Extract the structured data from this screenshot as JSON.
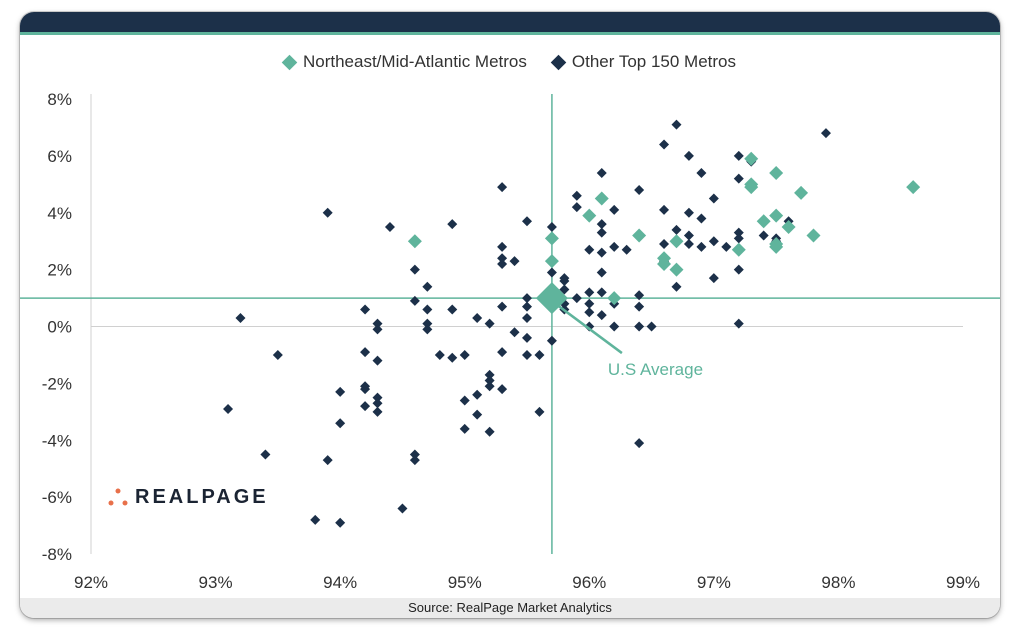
{
  "source": "Source: RealPage Market Analytics",
  "logo": {
    "text": "REALPAGE"
  },
  "colors": {
    "northeast": "#5fb49c",
    "other": "#1c3049",
    "header": "#1c3049",
    "accent": "#5fb49c"
  },
  "chart_data": {
    "type": "scatter",
    "xlim": [
      0.92,
      0.99
    ],
    "ylim": [
      -0.08,
      0.08
    ],
    "x_ticks": [
      "92%",
      "93%",
      "94%",
      "95%",
      "96%",
      "97%",
      "98%",
      "99%"
    ],
    "y_ticks": [
      "8%",
      "6%",
      "4%",
      "2%",
      "0%",
      "-2%",
      "-4%",
      "-6%",
      "-8%"
    ],
    "reference_lines": {
      "x": 0.957,
      "y": 0.01
    },
    "annotation": {
      "text": "U.S Average",
      "x": 0.957,
      "y": 0.01
    },
    "series": [
      {
        "name": "Northeast/Mid-Atlantic Metros",
        "color": "#5fb49c",
        "points": [
          [
            0.946,
            0.03
          ],
          [
            0.957,
            0.031
          ],
          [
            0.957,
            0.023
          ],
          [
            0.96,
            0.039
          ],
          [
            0.961,
            0.045
          ],
          [
            0.962,
            0.01
          ],
          [
            0.964,
            0.032
          ],
          [
            0.966,
            0.024
          ],
          [
            0.966,
            0.022
          ],
          [
            0.967,
            0.03
          ],
          [
            0.967,
            0.02
          ],
          [
            0.972,
            0.027
          ],
          [
            0.973,
            0.059
          ],
          [
            0.973,
            0.05
          ],
          [
            0.973,
            0.049
          ],
          [
            0.974,
            0.037
          ],
          [
            0.975,
            0.054
          ],
          [
            0.975,
            0.039
          ],
          [
            0.975,
            0.029
          ],
          [
            0.975,
            0.028
          ],
          [
            0.976,
            0.035
          ],
          [
            0.977,
            0.047
          ],
          [
            0.978,
            0.032
          ],
          [
            0.986,
            0.049
          ]
        ]
      },
      {
        "name": "Other Top 150 Metros",
        "color": "#1c3049",
        "points": [
          [
            0.931,
            -0.029
          ],
          [
            0.932,
            0.003
          ],
          [
            0.934,
            -0.045
          ],
          [
            0.935,
            -0.01
          ],
          [
            0.938,
            -0.068
          ],
          [
            0.939,
            0.04
          ],
          [
            0.939,
            -0.047
          ],
          [
            0.94,
            -0.023
          ],
          [
            0.94,
            -0.034
          ],
          [
            0.94,
            -0.069
          ],
          [
            0.942,
            0.006
          ],
          [
            0.942,
            -0.009
          ],
          [
            0.942,
            -0.021
          ],
          [
            0.942,
            -0.022
          ],
          [
            0.942,
            -0.028
          ],
          [
            0.943,
            0.001
          ],
          [
            0.943,
            -0.001
          ],
          [
            0.943,
            -0.012
          ],
          [
            0.943,
            -0.025
          ],
          [
            0.943,
            -0.027
          ],
          [
            0.943,
            -0.03
          ],
          [
            0.944,
            0.035
          ],
          [
            0.945,
            -0.064
          ],
          [
            0.946,
            0.02
          ],
          [
            0.946,
            0.009
          ],
          [
            0.946,
            -0.045
          ],
          [
            0.946,
            -0.047
          ],
          [
            0.947,
            0.014
          ],
          [
            0.947,
            0.006
          ],
          [
            0.947,
            0.001
          ],
          [
            0.947,
            -0.001
          ],
          [
            0.948,
            -0.01
          ],
          [
            0.949,
            0.036
          ],
          [
            0.949,
            0.006
          ],
          [
            0.949,
            -0.011
          ],
          [
            0.95,
            -0.01
          ],
          [
            0.95,
            -0.026
          ],
          [
            0.95,
            -0.036
          ],
          [
            0.951,
            0.003
          ],
          [
            0.951,
            -0.024
          ],
          [
            0.951,
            -0.031
          ],
          [
            0.952,
            0.001
          ],
          [
            0.952,
            -0.017
          ],
          [
            0.952,
            -0.019
          ],
          [
            0.952,
            -0.021
          ],
          [
            0.952,
            -0.037
          ],
          [
            0.953,
            0.049
          ],
          [
            0.953,
            0.028
          ],
          [
            0.953,
            0.024
          ],
          [
            0.953,
            0.022
          ],
          [
            0.953,
            0.007
          ],
          [
            0.953,
            -0.009
          ],
          [
            0.953,
            -0.022
          ],
          [
            0.954,
            0.023
          ],
          [
            0.954,
            -0.002
          ],
          [
            0.955,
            0.037
          ],
          [
            0.955,
            0.01
          ],
          [
            0.955,
            0.007
          ],
          [
            0.955,
            0.003
          ],
          [
            0.955,
            -0.004
          ],
          [
            0.955,
            -0.01
          ],
          [
            0.956,
            -0.01
          ],
          [
            0.956,
            -0.03
          ],
          [
            0.957,
            0.035
          ],
          [
            0.957,
            0.019
          ],
          [
            0.957,
            0.013
          ],
          [
            0.957,
            -0.005
          ],
          [
            0.958,
            0.017
          ],
          [
            0.958,
            0.016
          ],
          [
            0.958,
            0.013
          ],
          [
            0.958,
            0.008
          ],
          [
            0.958,
            0.006
          ],
          [
            0.959,
            0.046
          ],
          [
            0.959,
            0.042
          ],
          [
            0.959,
            0.01
          ],
          [
            0.96,
            0.027
          ],
          [
            0.96,
            0.012
          ],
          [
            0.96,
            0.008
          ],
          [
            0.96,
            0.005
          ],
          [
            0.96,
            0.0
          ],
          [
            0.961,
            0.054
          ],
          [
            0.961,
            0.036
          ],
          [
            0.961,
            0.033
          ],
          [
            0.961,
            0.026
          ],
          [
            0.961,
            0.019
          ],
          [
            0.961,
            0.012
          ],
          [
            0.961,
            0.004
          ],
          [
            0.962,
            0.041
          ],
          [
            0.962,
            0.028
          ],
          [
            0.962,
            0.01
          ],
          [
            0.962,
            0.008
          ],
          [
            0.962,
            0.0
          ],
          [
            0.963,
            0.027
          ],
          [
            0.964,
            0.048
          ],
          [
            0.964,
            0.011
          ],
          [
            0.964,
            0.007
          ],
          [
            0.964,
            0.0
          ],
          [
            0.964,
            -0.041
          ],
          [
            0.965,
            0.0
          ],
          [
            0.966,
            0.064
          ],
          [
            0.966,
            0.041
          ],
          [
            0.966,
            0.029
          ],
          [
            0.966,
            0.023
          ],
          [
            0.967,
            0.071
          ],
          [
            0.967,
            0.034
          ],
          [
            0.967,
            0.014
          ],
          [
            0.968,
            0.06
          ],
          [
            0.968,
            0.04
          ],
          [
            0.968,
            0.032
          ],
          [
            0.968,
            0.029
          ],
          [
            0.969,
            0.054
          ],
          [
            0.969,
            0.038
          ],
          [
            0.969,
            0.028
          ],
          [
            0.97,
            0.045
          ],
          [
            0.97,
            0.03
          ],
          [
            0.97,
            0.017
          ],
          [
            0.971,
            0.028
          ],
          [
            0.972,
            0.06
          ],
          [
            0.972,
            0.052
          ],
          [
            0.972,
            0.033
          ],
          [
            0.972,
            0.031
          ],
          [
            0.972,
            0.02
          ],
          [
            0.972,
            0.001
          ],
          [
            0.973,
            0.058
          ],
          [
            0.974,
            0.032
          ],
          [
            0.975,
            0.031
          ],
          [
            0.975,
            0.03
          ],
          [
            0.976,
            0.037
          ],
          [
            0.976,
            0.035
          ],
          [
            0.979,
            0.068
          ]
        ]
      }
    ]
  }
}
